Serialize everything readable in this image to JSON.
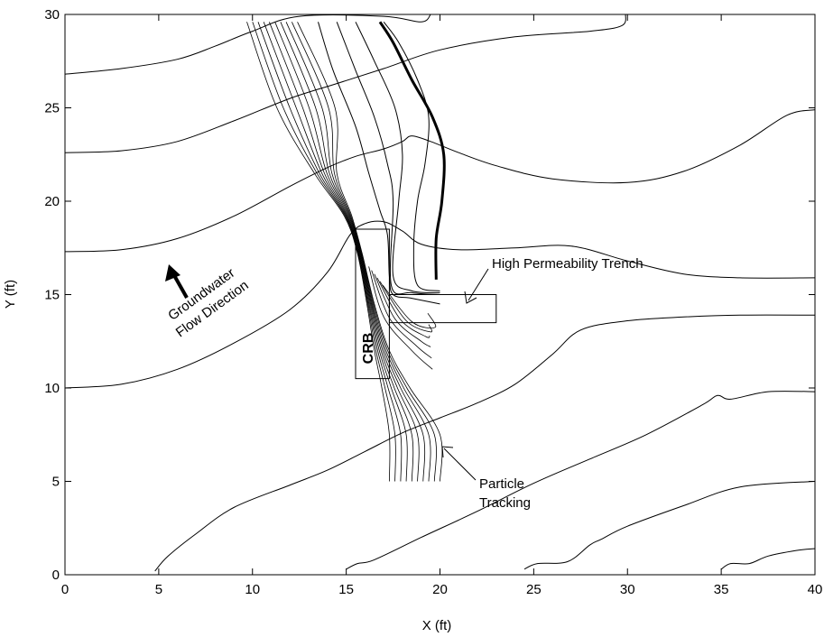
{
  "chart_data": {
    "type": "line",
    "title": "",
    "xlabel": "X (ft)",
    "ylabel": "Y (ft)",
    "xlim": [
      0,
      40
    ],
    "ylim": [
      0,
      30
    ],
    "xticks": [
      0,
      5,
      10,
      15,
      20,
      25,
      30,
      35,
      40
    ],
    "yticks": [
      0,
      5,
      10,
      15,
      20,
      25,
      30
    ],
    "grid": false,
    "barrier_label": "CRB",
    "barrier": [
      [
        15.5,
        10.5
      ],
      [
        17.3,
        10.5
      ],
      [
        17.3,
        18.5
      ],
      [
        15.5,
        18.5
      ]
    ],
    "trench": [
      [
        17.3,
        13.5
      ],
      [
        23.0,
        13.5
      ],
      [
        23.0,
        15.0
      ],
      [
        17.3,
        15.0
      ]
    ],
    "annotations": {
      "trench_label": "High Permeability Trench",
      "tracking_label_1": "Particle",
      "tracking_label_2": "Tracking",
      "flow_label_1": "Groundwater",
      "flow_label_2": "Flow Direction"
    },
    "head_contours": [
      [
        [
          0,
          26.8
        ],
        [
          3,
          27.1
        ],
        [
          6,
          27.6
        ],
        [
          8,
          28.3
        ],
        [
          10,
          29.1
        ],
        [
          12.5,
          29.9
        ],
        [
          17,
          29.9
        ],
        [
          19,
          29.6
        ],
        [
          19.5,
          30
        ]
      ],
      [
        [
          0,
          22.6
        ],
        [
          3,
          22.7
        ],
        [
          6,
          23.2
        ],
        [
          9,
          24.3
        ],
        [
          12,
          25.5
        ],
        [
          14.5,
          26.3
        ],
        [
          17,
          27.1
        ],
        [
          20,
          28.1
        ],
        [
          24,
          28.8
        ],
        [
          28,
          29.1
        ],
        [
          29.7,
          29.4
        ],
        [
          29.9,
          30
        ]
      ],
      [
        [
          0,
          17.3
        ],
        [
          3,
          17.4
        ],
        [
          6,
          18.0
        ],
        [
          9,
          19.2
        ],
        [
          12,
          20.8
        ],
        [
          14,
          21.8
        ],
        [
          15.5,
          22.4
        ],
        [
          17,
          22.8
        ],
        [
          18,
          23.2
        ],
        [
          18.5,
          23.5
        ],
        [
          19.5,
          23.2
        ],
        [
          21,
          22.6
        ],
        [
          23,
          21.9
        ],
        [
          26,
          21.2
        ],
        [
          30,
          21.0
        ],
        [
          33,
          21.6
        ],
        [
          36,
          23.0
        ],
        [
          38.5,
          24.6
        ],
        [
          40,
          24.9
        ]
      ],
      [
        [
          0,
          10.0
        ],
        [
          3,
          10.2
        ],
        [
          6,
          11.0
        ],
        [
          9,
          12.4
        ],
        [
          12,
          14.2
        ],
        [
          14,
          16.2
        ],
        [
          15.2,
          18.2
        ],
        [
          16,
          18.8
        ],
        [
          17,
          18.9
        ],
        [
          18,
          18.4
        ],
        [
          19,
          17.7
        ],
        [
          21,
          17.4
        ],
        [
          24,
          17.5
        ],
        [
          27,
          17.6
        ],
        [
          30,
          16.8
        ],
        [
          33,
          16.1
        ],
        [
          36,
          15.9
        ],
        [
          40,
          15.9
        ]
      ],
      [
        [
          4.8,
          0.2
        ],
        [
          5.5,
          1.0
        ],
        [
          7,
          2.2
        ],
        [
          9,
          3.6
        ],
        [
          12,
          4.8
        ],
        [
          14,
          5.6
        ],
        [
          16,
          6.6
        ],
        [
          18,
          7.6
        ],
        [
          20,
          8.4
        ],
        [
          22,
          9.2
        ],
        [
          24,
          10.2
        ],
        [
          26,
          11.8
        ],
        [
          27.5,
          13.1
        ],
        [
          30,
          13.6
        ],
        [
          33,
          13.8
        ],
        [
          36,
          13.9
        ],
        [
          40,
          13.9
        ]
      ],
      [
        [
          15,
          0.3
        ],
        [
          15.6,
          0.6
        ],
        [
          16.5,
          0.8
        ],
        [
          19,
          2.0
        ],
        [
          22,
          3.4
        ],
        [
          25,
          4.9
        ],
        [
          28,
          6.2
        ],
        [
          31,
          7.5
        ],
        [
          34,
          9.1
        ],
        [
          34.8,
          9.6
        ],
        [
          35.5,
          9.4
        ],
        [
          37.5,
          9.8
        ],
        [
          40,
          9.8
        ]
      ],
      [
        [
          24.5,
          0.3
        ],
        [
          25.2,
          0.6
        ],
        [
          26.8,
          0.7
        ],
        [
          28,
          1.6
        ],
        [
          28.6,
          1.9
        ],
        [
          30,
          2.6
        ],
        [
          33,
          3.7
        ],
        [
          36,
          4.7
        ],
        [
          40,
          5.0
        ]
      ],
      [
        [
          35,
          0.3
        ],
        [
          35.5,
          0.6
        ],
        [
          36.5,
          0.6
        ],
        [
          37.5,
          1.0
        ],
        [
          39,
          1.3
        ],
        [
          40,
          1.4
        ]
      ]
    ],
    "pathline_set": {
      "top_x": [
        9.7,
        10.0,
        10.3,
        10.6,
        10.9,
        11.2,
        11.5,
        11.8,
        12.1,
        12.4
      ],
      "top_y": 29.6,
      "bottom_x": [
        17.3,
        17.6,
        17.9,
        18.2,
        18.5,
        18.8,
        19.1,
        19.4,
        19.7,
        20.0
      ],
      "bottom_y": 5.0
    },
    "pathlines": [
      [
        [
          13.5,
          29.6
        ],
        [
          14.3,
          27.0
        ],
        [
          15.5,
          24.0
        ],
        [
          16.2,
          21.5
        ],
        [
          16.8,
          19.5
        ],
        [
          17.2,
          18.2
        ],
        [
          17.3,
          16.0
        ],
        [
          17.5,
          15.0
        ],
        [
          18.5,
          14.8
        ],
        [
          20.0,
          14.5
        ]
      ],
      [
        [
          14.5,
          29.6
        ],
        [
          15.5,
          27.0
        ],
        [
          16.5,
          24.5
        ],
        [
          17.2,
          22.0
        ],
        [
          17.5,
          20.0
        ],
        [
          17.4,
          15.5
        ],
        [
          18.5,
          15.1
        ],
        [
          20.0,
          15.0
        ]
      ],
      [
        [
          15.5,
          29.6
        ],
        [
          16.5,
          27.5
        ],
        [
          17.6,
          25.0
        ],
        [
          18.0,
          22.5
        ],
        [
          17.8,
          20.0
        ],
        [
          17.5,
          16.0
        ],
        [
          18.5,
          15.2
        ],
        [
          20.0,
          15.1
        ]
      ],
      [
        [
          17.0,
          29.6
        ],
        [
          17.8,
          28.5
        ],
        [
          18.8,
          26.5
        ],
        [
          19.4,
          24.5
        ],
        [
          19.2,
          22.0
        ],
        [
          18.8,
          20.0
        ],
        [
          18.6,
          17.5
        ],
        [
          18.8,
          15.5
        ],
        [
          20.0,
          15.2
        ]
      ]
    ],
    "thick_pathline": [
      [
        16.8,
        29.6
      ],
      [
        17.5,
        28.5
      ],
      [
        18.5,
        26.5
      ],
      [
        19.6,
        24.5
      ],
      [
        20.2,
        22.5
      ],
      [
        20.1,
        20.0
      ],
      [
        19.8,
        18.0
      ],
      [
        19.8,
        15.8
      ]
    ]
  }
}
